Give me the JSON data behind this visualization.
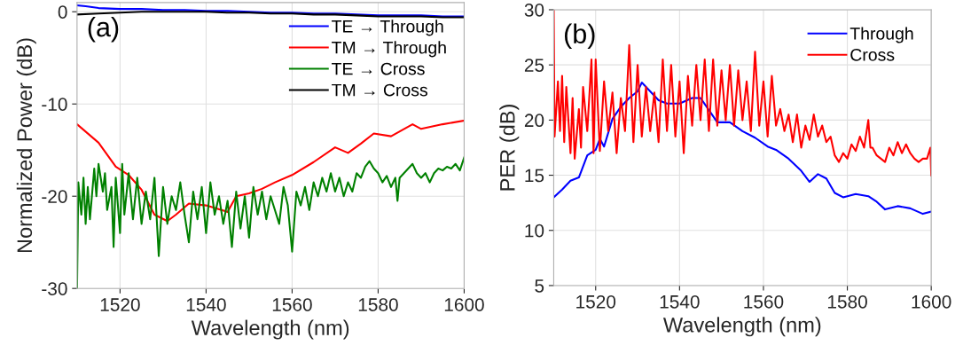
{
  "chart_data": [
    {
      "type": "line",
      "xlabel": "Wavelength (nm)",
      "ylabel": "Normalized Power (dB)",
      "annotations": [
        "(a)"
      ],
      "xlim": [
        1510,
        1600
      ],
      "xticks": [
        1520,
        1540,
        1560,
        1580,
        1600
      ],
      "ylim": [
        -30,
        1
      ],
      "yticks": [
        -30,
        -20,
        -10,
        0
      ],
      "grid": true,
      "legend": "top right",
      "marker": "none",
      "line_style": "solid",
      "series": [
        {
          "name": "TE → Through",
          "color": "#0000ff",
          "x": [
            1510,
            1512,
            1515,
            1520,
            1525,
            1530,
            1535,
            1540,
            1545,
            1550,
            1555,
            1560,
            1565,
            1570,
            1575,
            1580,
            1585,
            1590,
            1595,
            1600
          ],
          "values": [
            0.7,
            0.6,
            0.4,
            0.3,
            0.3,
            0.2,
            0.2,
            0.1,
            0.1,
            0.0,
            -0.1,
            -0.1,
            -0.2,
            -0.2,
            -0.3,
            -0.4,
            -0.4,
            -0.4,
            -0.5,
            -0.5
          ]
        },
        {
          "name": "TM → Through",
          "color": "#ff0000",
          "x": [
            1510,
            1515,
            1519,
            1522,
            1525,
            1528,
            1531,
            1533,
            1536,
            1540,
            1545,
            1547,
            1550,
            1553,
            1556,
            1560,
            1565,
            1570,
            1573,
            1576,
            1579,
            1583,
            1588,
            1590,
            1595,
            1600
          ],
          "values": [
            -12.2,
            -14.2,
            -16.8,
            -17.7,
            -19.3,
            -22,
            -22.7,
            -22,
            -20.8,
            -21,
            -21.7,
            -20,
            -19.7,
            -19.2,
            -18.5,
            -17.7,
            -16.3,
            -14.7,
            -15.3,
            -14.3,
            -13.2,
            -13.5,
            -12.2,
            -12.7,
            -12.2,
            -11.8
          ]
        },
        {
          "name": "TE → Cross",
          "color": "#008000",
          "x": [
            1510,
            1510.3,
            1511,
            1511.5,
            1512,
            1512.5,
            1513,
            1514,
            1514.5,
            1515,
            1516,
            1516.5,
            1517,
            1518,
            1518.5,
            1519,
            1520,
            1520.5,
            1521,
            1522,
            1523,
            1524,
            1525,
            1526,
            1527,
            1528,
            1529,
            1530,
            1531,
            1532,
            1533,
            1534,
            1535,
            1536,
            1537,
            1538,
            1539,
            1540,
            1541,
            1542,
            1543,
            1544,
            1545,
            1546,
            1547,
            1548,
            1549,
            1550,
            1551,
            1552,
            1553,
            1554,
            1555,
            1556,
            1557,
            1558,
            1559,
            1560,
            1561,
            1562,
            1563,
            1564,
            1565,
            1566,
            1567,
            1568,
            1569,
            1570,
            1571,
            1572,
            1573,
            1574,
            1575,
            1576,
            1577,
            1578,
            1579,
            1580,
            1581,
            1582,
            1583,
            1584,
            1584.5,
            1585,
            1586,
            1587,
            1588,
            1589,
            1590,
            1591,
            1592,
            1593,
            1594,
            1595,
            1596,
            1597,
            1598,
            1599,
            1600
          ],
          "values": [
            -30,
            -18.5,
            -22,
            -18,
            -23,
            -19,
            -22.5,
            -17,
            -20,
            -16.5,
            -19.5,
            -17.5,
            -21.5,
            -19,
            -25.5,
            -18,
            -24,
            -16.5,
            -22,
            -17.5,
            -22.5,
            -18,
            -23,
            -19.5,
            -22.5,
            -18,
            -26.5,
            -19,
            -23,
            -20,
            -21.5,
            -18.5,
            -22,
            -25,
            -19.5,
            -22.5,
            -19,
            -24,
            -18.5,
            -22,
            -20,
            -23,
            -20.5,
            -25.5,
            -19.5,
            -23.5,
            -20,
            -24.5,
            -19,
            -22,
            -19.5,
            -22.5,
            -20,
            -21.5,
            -23,
            -19,
            -21,
            -26,
            -19.5,
            -21,
            -19,
            -21.5,
            -18.5,
            -20,
            -18,
            -19.5,
            -17.5,
            -19.5,
            -18,
            -20,
            -18.5,
            -19.5,
            -17.5,
            -18,
            -16.8,
            -16.2,
            -17,
            -17.5,
            -18.5,
            -17.8,
            -19,
            -18,
            -20.5,
            -18,
            -17.5,
            -17,
            -16.5,
            -17.5,
            -18,
            -17.5,
            -18.5,
            -17.5,
            -17,
            -17.2,
            -16.8,
            -17,
            -16.5,
            -17.2,
            -15.8
          ]
        },
        {
          "name": "TM → Cross",
          "color": "#000000",
          "x": [
            1510,
            1515,
            1520,
            1525,
            1530,
            1535,
            1540,
            1545,
            1550,
            1555,
            1560,
            1565,
            1570,
            1575,
            1580,
            1585,
            1590,
            1595,
            1600
          ],
          "values": [
            -0.3,
            -0.2,
            -0.1,
            0,
            0,
            0,
            0,
            -0.1,
            -0.1,
            -0.2,
            -0.2,
            -0.3,
            -0.3,
            -0.4,
            -0.5,
            -0.5,
            -0.5,
            -0.6,
            -0.6
          ]
        }
      ]
    },
    {
      "type": "line",
      "xlabel": "Wavelength (nm)",
      "ylabel": "PER (dB)",
      "annotations": [
        "(b)"
      ],
      "xlim": [
        1510,
        1600
      ],
      "xticks": [
        1520,
        1540,
        1560,
        1580,
        1600
      ],
      "ylim": [
        5,
        30
      ],
      "yticks": [
        5,
        10,
        15,
        20,
        25,
        30
      ],
      "grid": true,
      "legend": "top right",
      "marker": "none",
      "line_style": "solid",
      "series": [
        {
          "name": "Through",
          "color": "#0000ff",
          "x": [
            1510,
            1512,
            1514,
            1516,
            1518,
            1520,
            1521,
            1522,
            1524,
            1526,
            1528,
            1530,
            1531,
            1533,
            1535,
            1537,
            1540,
            1543,
            1545,
            1547,
            1549,
            1552,
            1555,
            1558,
            1561,
            1563,
            1566,
            1569,
            1571,
            1573,
            1575,
            1577,
            1579,
            1582,
            1585,
            1587,
            1589,
            1592,
            1595,
            1598,
            1600
          ],
          "values": [
            13.0,
            13.7,
            14.5,
            14.8,
            16.8,
            17.3,
            18.3,
            17.6,
            20.1,
            21.2,
            22,
            22.6,
            23.4,
            22.6,
            21.8,
            21.5,
            21.5,
            22,
            22,
            20.9,
            19.8,
            19.8,
            19,
            18.4,
            17.6,
            17.3,
            16.5,
            15.4,
            14.4,
            15.1,
            14.7,
            13.4,
            13,
            13.3,
            13.1,
            12.6,
            11.9,
            12.2,
            12,
            11.5,
            11.7
          ]
        },
        {
          "name": "Cross",
          "color": "#ff0000",
          "x": [
            1510,
            1510.2,
            1511,
            1511.5,
            1512,
            1512.5,
            1513,
            1514,
            1514.5,
            1515,
            1516,
            1516.5,
            1517,
            1518,
            1519,
            1519.5,
            1520,
            1521,
            1522,
            1523,
            1524,
            1525,
            1526,
            1527,
            1528,
            1529,
            1530,
            1531,
            1532,
            1533,
            1534,
            1535,
            1536,
            1537,
            1538,
            1539,
            1540,
            1541,
            1542,
            1543,
            1544,
            1545,
            1546,
            1547,
            1548,
            1549,
            1550,
            1551,
            1552,
            1553,
            1554,
            1555,
            1556,
            1557,
            1558,
            1559,
            1560,
            1561,
            1562,
            1563,
            1564,
            1565,
            1566,
            1567,
            1568,
            1569,
            1570,
            1571,
            1572,
            1573,
            1574,
            1575,
            1576,
            1577,
            1578,
            1579,
            1580,
            1581,
            1582,
            1583,
            1584,
            1585,
            1585.5,
            1586,
            1587,
            1588,
            1589,
            1590,
            1591,
            1592,
            1593,
            1594,
            1595,
            1596,
            1597,
            1598,
            1599,
            1599.8,
            1600
          ],
          "values": [
            30,
            18.5,
            23.5,
            19,
            24,
            18,
            23,
            17,
            22,
            16.5,
            21,
            17.5,
            23,
            19,
            25.5,
            17,
            25.5,
            17.2,
            23.5,
            19,
            22.5,
            17,
            22,
            19,
            26.8,
            18,
            25,
            18.5,
            23,
            19,
            22.5,
            18,
            25.5,
            19,
            25,
            18.5,
            23.5,
            17,
            24,
            19.5,
            25,
            20,
            25.5,
            19,
            25.5,
            19.5,
            24.5,
            20,
            25,
            19.5,
            24.5,
            20,
            23.5,
            19,
            26.2,
            19.5,
            23.5,
            18.5,
            24,
            19.5,
            21,
            19,
            20.5,
            18,
            20.5,
            17.5,
            19.5,
            18.2,
            20.5,
            18.5,
            19.5,
            18,
            18.5,
            16.8,
            16.2,
            17,
            16.5,
            17.8,
            17.2,
            18.5,
            17.5,
            20,
            17.5,
            17.5,
            16.8,
            16.5,
            16.2,
            17.5,
            16.8,
            18,
            17,
            17.8,
            17,
            16.5,
            16.2,
            16.5,
            16.5,
            17.5,
            15
          ]
        }
      ]
    }
  ]
}
